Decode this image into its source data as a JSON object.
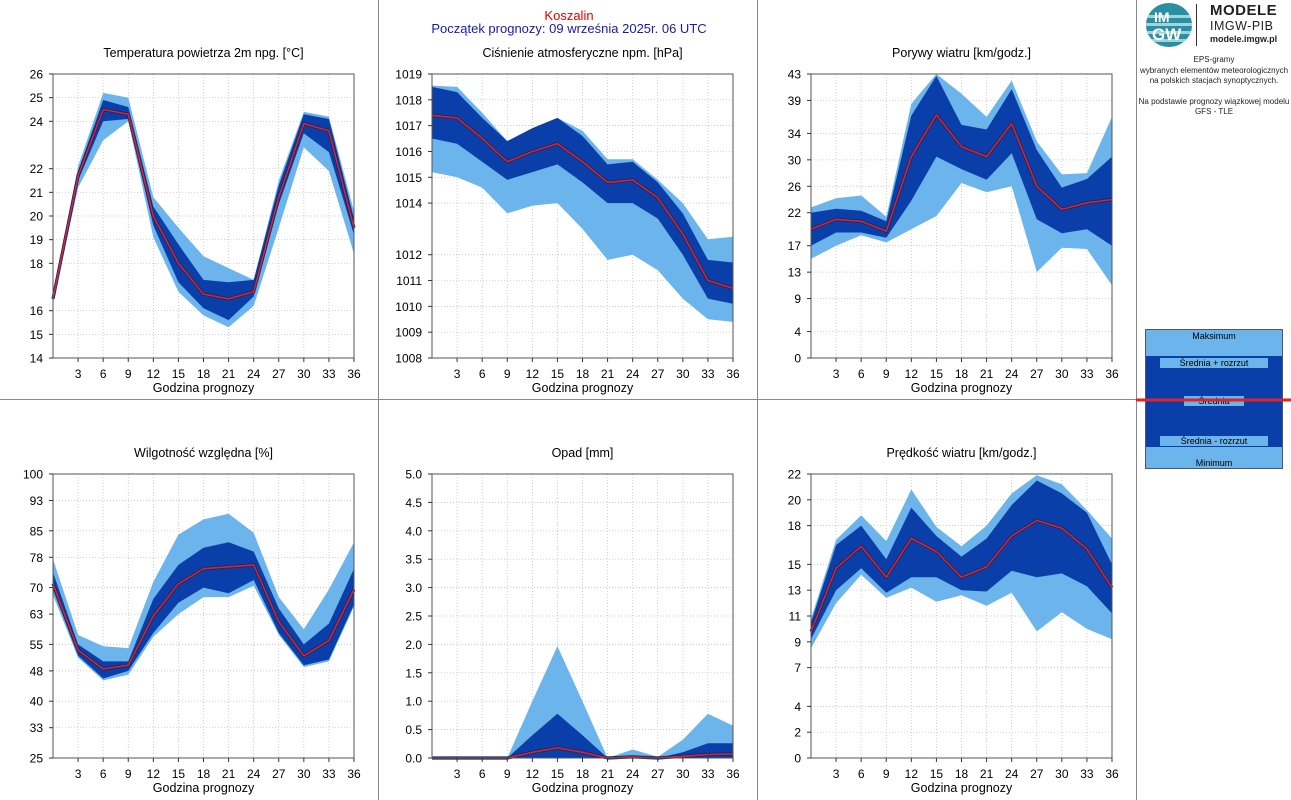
{
  "header": {
    "station": "Koszalin",
    "forecast_start": "Początek prognozy: 09 września 2025r. 06 UTC"
  },
  "logo": {
    "line1": "MODELE",
    "line2": "IMGW-PIB",
    "line3": "modele.imgw.pl",
    "badge_top": "IM",
    "badge_bottom": "GW"
  },
  "info": {
    "lines": [
      "EPS-gramy",
      "wybranych elementów meteorologicznych",
      "na polskich stacjach  synoptycznych.",
      "",
      "Na podstawie prognozy wiązkowej modelu",
      "GFS - TLE"
    ]
  },
  "legend": {
    "items": [
      "Maksimum",
      "Średnia + rozrzut",
      "Średnia",
      "Średnia - rozrzut",
      "Minimum"
    ]
  },
  "colors": {
    "outer_band": "#6cb4ec",
    "inner_band": "#0a3faa",
    "mean_line": "#e0202a",
    "edge": "#0a2a6a"
  },
  "chart_data": [
    {
      "type": "area",
      "title": "Temperatura powietrza 2m npg. [°C]",
      "xlabel": "Godzina prognozy",
      "ylabel": "",
      "x": [
        0,
        3,
        6,
        9,
        12,
        15,
        18,
        21,
        24,
        27,
        30,
        33,
        36
      ],
      "xticks": [
        3,
        6,
        9,
        12,
        15,
        18,
        21,
        24,
        27,
        30,
        33,
        36
      ],
      "ylim": [
        14,
        26
      ],
      "yticks": [
        14,
        15,
        16,
        18,
        19,
        20,
        21,
        22,
        24,
        25,
        26
      ],
      "ytick_labels": [
        "14",
        "15",
        "16",
        "18",
        "19",
        "20",
        "21",
        "22",
        "24",
        "25",
        "26"
      ],
      "series": [
        {
          "name": "Maksimum",
          "values": [
            16.7,
            22.1,
            25.2,
            25.0,
            20.8,
            19.5,
            18.3,
            17.8,
            17.3,
            21.5,
            24.4,
            24.2,
            20.2
          ]
        },
        {
          "name": "Średnia + rozrzut",
          "values": [
            16.6,
            21.9,
            24.9,
            24.6,
            20.4,
            18.8,
            17.3,
            17.2,
            17.3,
            21.3,
            24.3,
            24.1,
            19.9
          ]
        },
        {
          "name": "Średnia",
          "values": [
            16.5,
            21.7,
            24.5,
            24.3,
            20.0,
            18.0,
            16.7,
            16.5,
            16.8,
            20.8,
            23.9,
            23.6,
            19.5
          ]
        },
        {
          "name": "Średnia - rozrzut",
          "values": [
            16.4,
            21.5,
            24.0,
            24.1,
            19.6,
            17.2,
            16.1,
            15.6,
            16.6,
            20.5,
            23.5,
            22.7,
            19.2
          ]
        },
        {
          "name": "Minimum",
          "values": [
            16.3,
            21.2,
            23.2,
            24.0,
            19.1,
            16.8,
            15.8,
            15.3,
            16.2,
            19.5,
            22.9,
            21.9,
            18.4
          ]
        }
      ]
    },
    {
      "type": "area",
      "title": "Ciśnienie atmosferyczne npm. [hPa]",
      "xlabel": "Godzina prognozy",
      "ylabel": "",
      "x": [
        0,
        3,
        6,
        9,
        12,
        15,
        18,
        21,
        24,
        27,
        30,
        33,
        36
      ],
      "xticks": [
        3,
        6,
        9,
        12,
        15,
        18,
        21,
        24,
        27,
        30,
        33,
        36
      ],
      "ylim": [
        1008,
        1019
      ],
      "yticks": [
        1008,
        1009,
        1010,
        1011,
        1012,
        1014,
        1015,
        1016,
        1017,
        1018,
        1019
      ],
      "ytick_labels": [
        "1008",
        "1009",
        "1010",
        "1011",
        "1012",
        "1014",
        "1015",
        "1016",
        "1017",
        "1018",
        "1019"
      ],
      "series": [
        {
          "name": "Maksimum",
          "values": [
            1018.55,
            1018.5,
            1017.5,
            1016.4,
            1016.9,
            1017.3,
            1016.8,
            1015.7,
            1015.7,
            1014.9,
            1014.0,
            1012.6,
            1012.7
          ]
        },
        {
          "name": "Średnia + rozrzut",
          "values": [
            1018.5,
            1018.3,
            1017.3,
            1016.4,
            1016.9,
            1017.3,
            1016.6,
            1015.5,
            1015.6,
            1014.8,
            1013.6,
            1011.8,
            1011.7
          ]
        },
        {
          "name": "Średnia",
          "values": [
            1017.4,
            1017.3,
            1016.5,
            1015.6,
            1016.0,
            1016.3,
            1015.6,
            1014.8,
            1014.9,
            1014.2,
            1012.8,
            1011.0,
            1010.7
          ]
        },
        {
          "name": "Średnia - rozrzut",
          "values": [
            1016.5,
            1016.3,
            1015.6,
            1014.9,
            1015.2,
            1015.5,
            1014.8,
            1014.0,
            1014.0,
            1013.4,
            1012.0,
            1010.3,
            1010.1
          ]
        },
        {
          "name": "Minimum",
          "values": [
            1015.2,
            1015.0,
            1014.6,
            1013.6,
            1013.9,
            1014.0,
            1013.0,
            1011.8,
            1012.0,
            1011.4,
            1010.3,
            1009.5,
            1009.4
          ]
        }
      ]
    },
    {
      "type": "area",
      "title": "Porywy wiatru [km/godz.]",
      "xlabel": "Godzina prognozy",
      "ylabel": "",
      "x": [
        0,
        3,
        6,
        9,
        12,
        15,
        18,
        21,
        24,
        27,
        30,
        33,
        36
      ],
      "xticks": [
        3,
        6,
        9,
        12,
        15,
        18,
        21,
        24,
        27,
        30,
        33,
        36
      ],
      "ylim": [
        0,
        43
      ],
      "yticks": [
        0,
        4,
        9,
        13,
        17,
        22,
        26,
        30,
        34,
        39,
        43
      ],
      "ytick_labels": [
        "0",
        "4",
        "9",
        "13",
        "17",
        "22",
        "26",
        "30",
        "34",
        "39",
        "43"
      ],
      "series": [
        {
          "name": "Maksimum",
          "values": [
            22.8,
            24.2,
            24.6,
            21.4,
            38.5,
            43.0,
            40.0,
            36.5,
            42.0,
            32.8,
            27.8,
            28.0,
            36.5
          ]
        },
        {
          "name": "Średnia + rozrzut",
          "values": [
            22.0,
            22.6,
            22.3,
            20.7,
            36.7,
            42.7,
            35.3,
            34.6,
            40.7,
            31.5,
            25.8,
            27.1,
            30.5
          ]
        },
        {
          "name": "Średnia",
          "values": [
            19.5,
            21.0,
            20.7,
            19.2,
            30.5,
            36.8,
            32.0,
            30.5,
            35.5,
            26.0,
            22.5,
            23.5,
            24.0
          ]
        },
        {
          "name": "Średnia - rozrzut",
          "values": [
            17.0,
            19.0,
            19.0,
            18.2,
            23.8,
            30.5,
            28.6,
            27.0,
            31.0,
            21.0,
            18.9,
            19.5,
            17.0
          ]
        },
        {
          "name": "Minimum",
          "values": [
            15.0,
            17.0,
            18.6,
            17.5,
            19.5,
            21.5,
            26.5,
            25.1,
            26.0,
            13.0,
            16.7,
            16.5,
            11.0
          ]
        }
      ]
    },
    {
      "type": "area",
      "title": "Wilgotność względna [%]",
      "xlabel": "Godzina prognozy",
      "ylabel": "",
      "x": [
        0,
        3,
        6,
        9,
        12,
        15,
        18,
        21,
        24,
        27,
        30,
        33,
        36
      ],
      "xticks": [
        3,
        6,
        9,
        12,
        15,
        18,
        21,
        24,
        27,
        30,
        33,
        36
      ],
      "ylim": [
        25,
        100
      ],
      "yticks": [
        25,
        33,
        40,
        48,
        55,
        63,
        70,
        78,
        85,
        93,
        100
      ],
      "ytick_labels": [
        "25",
        "33",
        "40",
        "48",
        "55",
        "63",
        "70",
        "78",
        "85",
        "93",
        "100"
      ],
      "series": [
        {
          "name": "Maksimum",
          "values": [
            77.5,
            57.5,
            54.5,
            54.0,
            71.5,
            84.0,
            88.0,
            89.5,
            84.5,
            67.5,
            59.0,
            69.5,
            82.0
          ]
        },
        {
          "name": "Średnia + rozrzut",
          "values": [
            74.0,
            55.0,
            50.5,
            50.5,
            67.0,
            76.0,
            80.5,
            82.0,
            79.5,
            64.5,
            55.0,
            60.5,
            75.0
          ]
        },
        {
          "name": "Średnia",
          "values": [
            71.0,
            53.5,
            48.5,
            49.5,
            62.5,
            71.0,
            75.0,
            75.5,
            76.0,
            61.0,
            52.0,
            56.0,
            69.5
          ]
        },
        {
          "name": "Średnia - rozrzut",
          "values": [
            69.5,
            52.0,
            46.0,
            48.0,
            58.0,
            66.0,
            70.0,
            68.5,
            72.0,
            58.0,
            49.5,
            51.0,
            65.5
          ]
        },
        {
          "name": "Minimum",
          "values": [
            68.0,
            51.5,
            45.5,
            47.0,
            57.0,
            63.0,
            67.5,
            67.5,
            70.5,
            57.5,
            49.0,
            50.5,
            65.0
          ]
        }
      ]
    },
    {
      "type": "area",
      "title": "Opad [mm]",
      "xlabel": "Godzina prognozy",
      "ylabel": "",
      "x": [
        0,
        3,
        6,
        9,
        12,
        15,
        18,
        21,
        24,
        27,
        30,
        33,
        36
      ],
      "xticks": [
        3,
        6,
        9,
        12,
        15,
        18,
        21,
        24,
        27,
        30,
        33,
        36
      ],
      "ylim": [
        0,
        5
      ],
      "yticks": [
        0,
        0.5,
        1,
        1.5,
        2,
        2.5,
        3,
        3.5,
        4,
        4.5,
        5
      ],
      "ytick_labels": [
        "0.0",
        "0.5",
        "1.0",
        "1.5",
        "2.0",
        "2.5",
        "3.0",
        "3.5",
        "4.0",
        "4.5",
        "5.0"
      ],
      "series": [
        {
          "name": "Maksimum",
          "values": [
            0,
            0,
            0,
            0,
            1.0,
            1.97,
            1.0,
            0,
            0.15,
            0.02,
            0.32,
            0.78,
            0.57
          ]
        },
        {
          "name": "Średnia + rozrzut",
          "values": [
            0,
            0,
            0,
            0,
            0.4,
            0.78,
            0.4,
            0,
            0.04,
            0,
            0.1,
            0.26,
            0.26
          ]
        },
        {
          "name": "Średnia",
          "values": [
            0,
            0,
            0,
            0,
            0.1,
            0.18,
            0.1,
            0,
            0.02,
            0,
            0.03,
            0.06,
            0.07
          ]
        },
        {
          "name": "Średnia - rozrzut",
          "values": [
            0,
            0,
            0,
            0,
            0,
            0,
            0,
            0,
            0,
            0,
            0,
            0,
            0
          ]
        },
        {
          "name": "Minimum",
          "values": [
            0,
            0,
            0,
            0,
            0,
            0,
            0,
            0,
            0,
            0,
            0,
            0,
            0
          ]
        }
      ]
    },
    {
      "type": "area",
      "title": "Prędkość wiatru [km/godz.]",
      "xlabel": "Godzina prognozy",
      "ylabel": "",
      "x": [
        0,
        3,
        6,
        9,
        12,
        15,
        18,
        21,
        24,
        27,
        30,
        33,
        36
      ],
      "xticks": [
        3,
        6,
        9,
        12,
        15,
        18,
        21,
        24,
        27,
        30,
        33,
        36
      ],
      "ylim": [
        0,
        22
      ],
      "yticks": [
        0,
        2,
        4,
        7,
        9,
        11,
        13,
        15,
        18,
        20,
        22
      ],
      "ytick_labels": [
        "0",
        "2",
        "4",
        "7",
        "9",
        "11",
        "13",
        "15",
        "18",
        "20",
        "22"
      ],
      "series": [
        {
          "name": "Maksimum",
          "values": [
            10.8,
            16.9,
            18.8,
            16.8,
            20.8,
            17.9,
            16.4,
            18.0,
            20.5,
            21.9,
            21.2,
            19.2,
            17.0
          ]
        },
        {
          "name": "Średnia + rozrzut",
          "values": [
            10.5,
            16.5,
            18.0,
            15.4,
            19.4,
            17.2,
            15.6,
            17.0,
            19.6,
            21.5,
            20.5,
            19.0,
            15.0
          ]
        },
        {
          "name": "Średnia",
          "values": [
            9.8,
            14.7,
            16.4,
            14.0,
            17.0,
            16.0,
            14.0,
            14.8,
            17.2,
            18.4,
            17.8,
            16.2,
            13.2
          ]
        },
        {
          "name": "Średnia - rozrzut",
          "values": [
            9.2,
            13.0,
            14.7,
            12.8,
            14.0,
            14.0,
            13.0,
            12.9,
            14.5,
            14.0,
            14.3,
            13.3,
            11.2
          ]
        },
        {
          "name": "Minimum",
          "values": [
            8.5,
            12.0,
            14.2,
            12.4,
            13.2,
            12.1,
            12.6,
            11.8,
            12.8,
            9.8,
            11.3,
            10.0,
            9.2
          ]
        }
      ]
    }
  ]
}
